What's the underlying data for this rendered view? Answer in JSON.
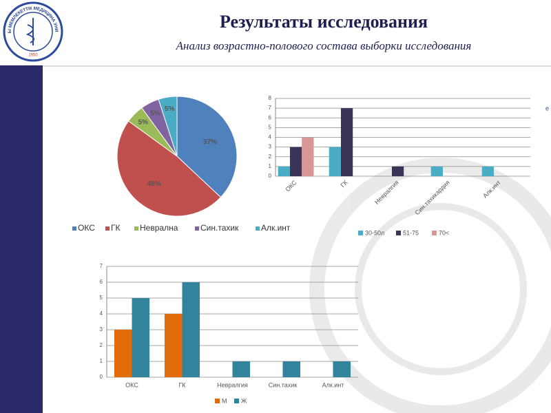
{
  "header": {
    "title": "Результаты исследования",
    "subtitle": "Анализ возрастно-полового состава выборки исследования",
    "logo_text": "ҚАРАҒАНДЫ МЕМЛЕКЕТТІК МЕДИЦИНА УНИВЕРСИТЕТІ",
    "logo_year": "1950"
  },
  "chart_data": [
    {
      "type": "pie",
      "categories": [
        "ОКС",
        "ГК",
        "Неврална",
        "Син.тахик",
        "Алк.инт"
      ],
      "values": [
        37,
        48,
        5,
        5,
        5
      ],
      "value_labels": [
        "37%",
        "48%",
        "5%",
        "5%",
        "5%"
      ],
      "colors": [
        "#4f81bd",
        "#c0504d",
        "#9bbb59",
        "#8064a2",
        "#4bacc6"
      ],
      "legend": "bottom"
    },
    {
      "type": "bar",
      "categories": [
        "ОКС",
        "ГК",
        "Невралгия",
        "Син.тахикардия",
        "Алк.инт"
      ],
      "series": [
        {
          "name": "30-50л",
          "color": "#4bacc6",
          "values": [
            1,
            3,
            0,
            1,
            1
          ]
        },
        {
          "name": "51-75",
          "color": "#3b3456",
          "values": [
            3,
            7,
            1,
            0,
            0
          ]
        },
        {
          "name": "70<",
          "color": "#d99694",
          "values": [
            4,
            0,
            0,
            0,
            0
          ]
        }
      ],
      "ylim": [
        0,
        8
      ],
      "yticks": [
        0,
        1,
        2,
        3,
        4,
        5,
        6,
        7,
        8
      ],
      "grid": true,
      "legend": "bottom",
      "annotation": "е"
    },
    {
      "type": "bar",
      "categories": [
        "ОКС",
        "ГК",
        "Невралгия",
        "Син.тахик",
        "Алк.инт"
      ],
      "series": [
        {
          "name": "М",
          "color": "#e36c0a",
          "values": [
            3,
            4,
            0,
            0,
            0
          ]
        },
        {
          "name": "Ж",
          "color": "#31849b",
          "values": [
            5,
            6,
            1,
            1,
            1
          ]
        }
      ],
      "ylim": [
        0,
        7
      ],
      "yticks": [
        0,
        1,
        2,
        3,
        4,
        5,
        6,
        7
      ],
      "grid": true,
      "legend": "bottom"
    }
  ]
}
